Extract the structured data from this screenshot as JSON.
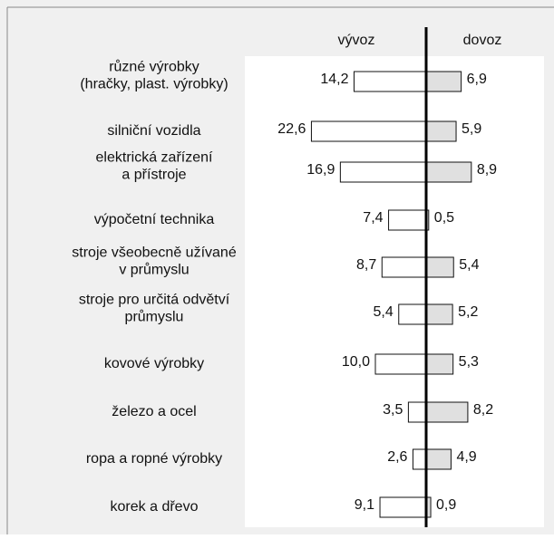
{
  "chart_data": {
    "type": "butterfly",
    "categories": [
      [
        "různé výrobky",
        "(hračky, plast. výrobky)"
      ],
      [
        "silniční vozidla"
      ],
      [
        "elektrická zařízení",
        "a přístroje"
      ],
      [
        "výpočetní technika"
      ],
      [
        "stroje všeobecně užívané",
        "v průmyslu"
      ],
      [
        "stroje pro určitá odvětví",
        "průmyslu"
      ],
      [
        "kovové výrobky"
      ],
      [
        "železo a ocel"
      ],
      [
        "ropa a ropné výrobky"
      ],
      [
        "korek a dřevo"
      ]
    ],
    "series": [
      {
        "name": "vývoz",
        "color": "#ffffff",
        "values": [
          14.2,
          22.6,
          16.9,
          7.4,
          8.7,
          5.4,
          10.0,
          3.5,
          2.6,
          9.1
        ],
        "value_labels": [
          "14,2",
          "22,6",
          "16,9",
          "7,4",
          "8,7",
          "5,4",
          "10,0",
          "3,5",
          "2,6",
          "9,1"
        ]
      },
      {
        "name": "dovoz",
        "color": "#e0e0e0",
        "values": [
          6.9,
          5.9,
          8.9,
          0.5,
          5.4,
          5.2,
          5.3,
          8.2,
          4.9,
          0.9
        ],
        "value_labels": [
          "6,9",
          "5,9",
          "8,9",
          "0,5",
          "5,4",
          "5,2",
          "5,3",
          "8,2",
          "4,9",
          "0,9"
        ]
      }
    ],
    "xlim": [
      0,
      23
    ]
  }
}
